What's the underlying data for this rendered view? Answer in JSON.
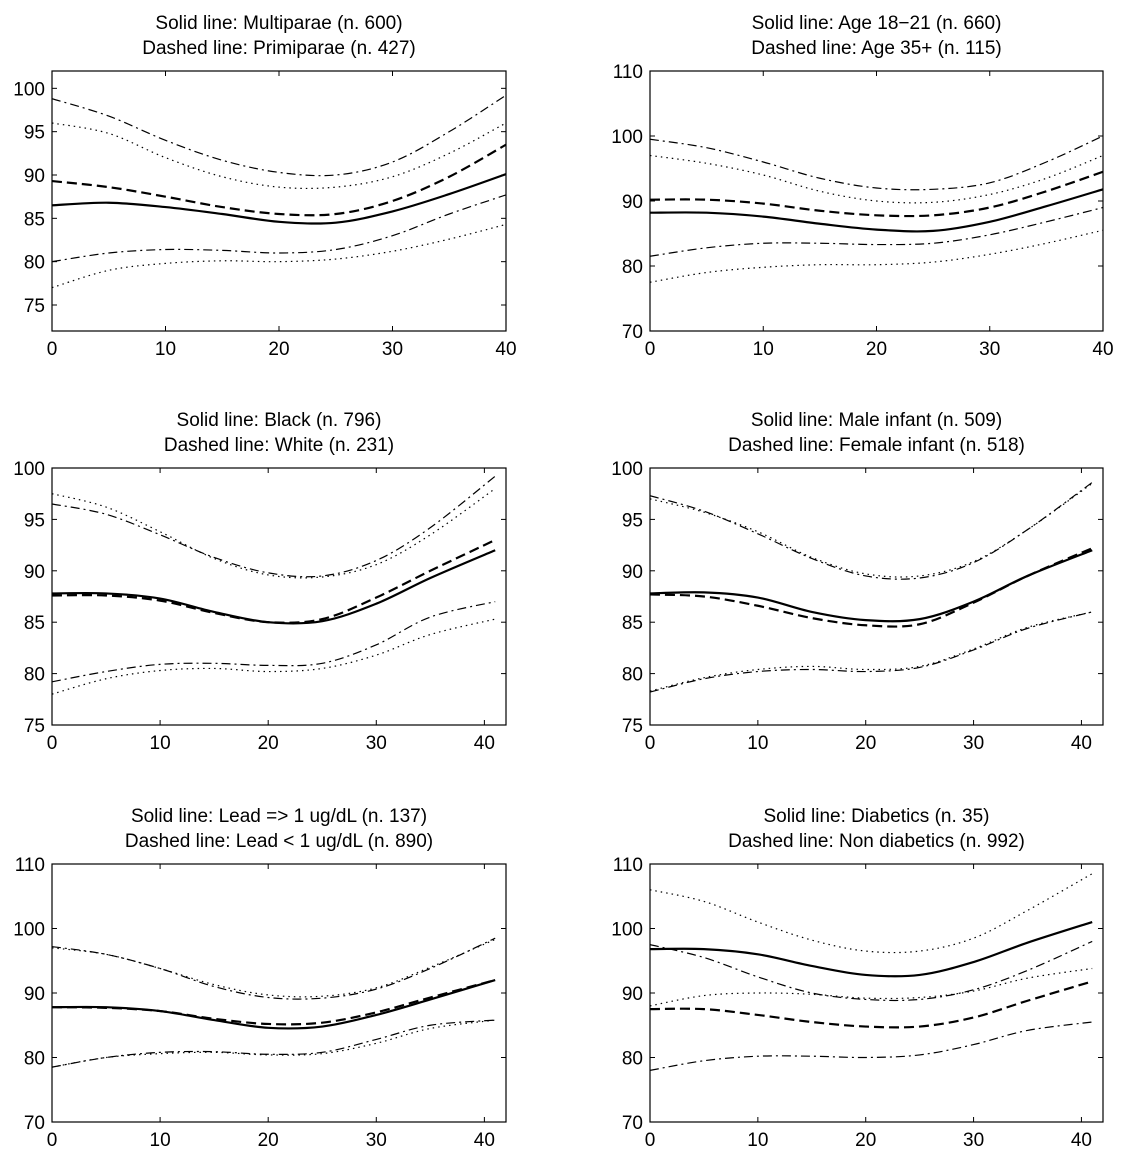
{
  "chart_data": [
    {
      "type": "line",
      "title_line1": "Solid line: Multiparae (n. 600)",
      "title_line2": "Dashed line: Primiparae (n. 427)",
      "xlim": [
        0,
        40
      ],
      "ylim": [
        72,
        102
      ],
      "xticks": [
        0,
        10,
        20,
        30,
        40
      ],
      "yticks": [
        75,
        80,
        85,
        90,
        95,
        100
      ],
      "series": [
        {
          "style": "solid",
          "x": [
            0,
            5,
            10,
            15,
            20,
            25,
            30,
            35,
            40
          ],
          "y": [
            86.5,
            86.8,
            86.3,
            85.5,
            84.6,
            84.5,
            85.8,
            87.8,
            90.1
          ]
        },
        {
          "style": "dashed",
          "x": [
            0,
            5,
            10,
            15,
            20,
            25,
            30,
            35,
            40
          ],
          "y": [
            89.3,
            88.6,
            87.5,
            86.3,
            85.5,
            85.5,
            87.0,
            89.8,
            93.5
          ]
        },
        {
          "style": "dashdot",
          "x": [
            0,
            5,
            10,
            15,
            20,
            25,
            30,
            35,
            40
          ],
          "y": [
            98.8,
            96.8,
            94.0,
            91.7,
            90.3,
            90.0,
            91.5,
            95.0,
            99.2
          ]
        },
        {
          "style": "dotted",
          "x": [
            0,
            5,
            10,
            15,
            20,
            25,
            30,
            35,
            40
          ],
          "y": [
            96.0,
            94.8,
            92.0,
            89.8,
            88.6,
            88.6,
            89.8,
            92.5,
            96.0
          ]
        },
        {
          "style": "dashdot",
          "x": [
            0,
            5,
            10,
            15,
            20,
            25,
            30,
            35,
            40
          ],
          "y": [
            80.0,
            81.0,
            81.4,
            81.3,
            81.0,
            81.4,
            83.0,
            85.5,
            87.7
          ]
        },
        {
          "style": "dotted",
          "x": [
            0,
            5,
            10,
            15,
            20,
            25,
            30,
            35,
            40
          ],
          "y": [
            77.0,
            79.0,
            79.8,
            80.1,
            80.0,
            80.3,
            81.2,
            82.6,
            84.3
          ]
        }
      ]
    },
    {
      "type": "line",
      "title_line1": "Solid line: Age 18−21 (n. 660)",
      "title_line2": "Dashed line: Age 35+ (n. 115)",
      "xlim": [
        0,
        40
      ],
      "ylim": [
        70,
        110
      ],
      "xticks": [
        0,
        10,
        20,
        30,
        40
      ],
      "yticks": [
        70,
        80,
        90,
        100,
        110
      ],
      "series": [
        {
          "style": "solid",
          "x": [
            0,
            5,
            10,
            15,
            20,
            25,
            30,
            35,
            40
          ],
          "y": [
            88.2,
            88.2,
            87.6,
            86.5,
            85.6,
            85.4,
            86.8,
            89.2,
            91.8
          ]
        },
        {
          "style": "dashed",
          "x": [
            0,
            5,
            10,
            15,
            20,
            25,
            30,
            35,
            40
          ],
          "y": [
            90.2,
            90.2,
            89.6,
            88.5,
            87.8,
            87.8,
            89.0,
            91.5,
            94.5
          ]
        },
        {
          "style": "dashdot",
          "x": [
            0,
            5,
            10,
            15,
            20,
            25,
            30,
            35,
            40
          ],
          "y": [
            99.5,
            98.2,
            96.0,
            93.5,
            92.0,
            91.8,
            92.8,
            96.0,
            100.0
          ]
        },
        {
          "style": "dotted",
          "x": [
            0,
            5,
            10,
            15,
            20,
            25,
            30,
            35,
            40
          ],
          "y": [
            97.0,
            95.8,
            94.0,
            91.5,
            90.0,
            89.8,
            91.0,
            93.5,
            97.0
          ]
        },
        {
          "style": "dashdot",
          "x": [
            0,
            5,
            10,
            15,
            20,
            25,
            30,
            35,
            40
          ],
          "y": [
            81.5,
            82.8,
            83.5,
            83.5,
            83.3,
            83.5,
            84.8,
            86.8,
            89.0
          ]
        },
        {
          "style": "dotted",
          "x": [
            0,
            5,
            10,
            15,
            20,
            25,
            30,
            35,
            40
          ],
          "y": [
            77.5,
            79.0,
            79.8,
            80.2,
            80.2,
            80.6,
            81.8,
            83.5,
            85.5
          ]
        }
      ]
    },
    {
      "type": "line",
      "title_line1": "Solid line: Black (n. 796)",
      "title_line2": "Dashed line: White (n. 231)",
      "xlim": [
        0,
        42
      ],
      "ylim": [
        75,
        100
      ],
      "xticks": [
        0,
        10,
        20,
        30,
        40
      ],
      "yticks": [
        75,
        80,
        85,
        90,
        95,
        100
      ],
      "series": [
        {
          "style": "solid",
          "x": [
            0,
            5,
            10,
            15,
            20,
            25,
            30,
            35,
            41
          ],
          "y": [
            87.8,
            87.8,
            87.3,
            86.0,
            85.0,
            85.1,
            86.8,
            89.3,
            92.0
          ]
        },
        {
          "style": "dashed",
          "x": [
            0,
            5,
            10,
            15,
            20,
            25,
            30,
            35,
            41
          ],
          "y": [
            87.6,
            87.6,
            87.1,
            85.9,
            85.0,
            85.3,
            87.4,
            90.0,
            93.0
          ]
        },
        {
          "style": "dashdot",
          "x": [
            0,
            5,
            10,
            15,
            20,
            25,
            30,
            35,
            41
          ],
          "y": [
            96.5,
            95.5,
            93.5,
            91.3,
            89.8,
            89.5,
            91.0,
            94.2,
            99.2
          ]
        },
        {
          "style": "dotted",
          "x": [
            0,
            5,
            10,
            15,
            20,
            25,
            30,
            35,
            41
          ],
          "y": [
            97.5,
            96.2,
            93.8,
            91.2,
            89.6,
            89.4,
            90.6,
            93.5,
            98.0
          ]
        },
        {
          "style": "dashdot",
          "x": [
            0,
            5,
            10,
            15,
            20,
            25,
            30,
            35,
            41
          ],
          "y": [
            79.2,
            80.2,
            80.9,
            81.0,
            80.8,
            81.0,
            82.8,
            85.5,
            87.0
          ]
        },
        {
          "style": "dotted",
          "x": [
            0,
            5,
            10,
            15,
            20,
            25,
            30,
            35,
            41
          ],
          "y": [
            78.0,
            79.5,
            80.3,
            80.5,
            80.2,
            80.5,
            81.8,
            83.8,
            85.3
          ]
        }
      ]
    },
    {
      "type": "line",
      "title_line1": "Solid line: Male infant (n. 509)",
      "title_line2": "Dashed line: Female infant (n. 518)",
      "xlim": [
        0,
        42
      ],
      "ylim": [
        75,
        100
      ],
      "xticks": [
        0,
        10,
        20,
        30,
        40
      ],
      "yticks": [
        75,
        80,
        85,
        90,
        95,
        100
      ],
      "series": [
        {
          "style": "solid",
          "x": [
            0,
            5,
            10,
            15,
            20,
            25,
            30,
            35,
            41
          ],
          "y": [
            87.8,
            87.9,
            87.4,
            86.0,
            85.2,
            85.3,
            87.0,
            89.5,
            92.0
          ]
        },
        {
          "style": "dashed",
          "x": [
            0,
            5,
            10,
            15,
            20,
            25,
            30,
            35,
            41
          ],
          "y": [
            87.7,
            87.5,
            86.6,
            85.4,
            84.7,
            84.8,
            86.9,
            89.5,
            92.2
          ]
        },
        {
          "style": "dashdot",
          "x": [
            0,
            5,
            10,
            15,
            20,
            25,
            30,
            35,
            41
          ],
          "y": [
            97.3,
            95.8,
            93.6,
            91.2,
            89.5,
            89.3,
            90.8,
            94.0,
            98.6
          ]
        },
        {
          "style": "dotted",
          "x": [
            0,
            5,
            10,
            15,
            20,
            25,
            30,
            35,
            41
          ],
          "y": [
            97.0,
            95.7,
            93.8,
            91.3,
            89.7,
            89.5,
            90.9,
            94.0,
            98.5
          ]
        },
        {
          "style": "dashdot",
          "x": [
            0,
            5,
            10,
            15,
            20,
            25,
            30,
            35,
            41
          ],
          "y": [
            78.2,
            79.5,
            80.2,
            80.4,
            80.2,
            80.6,
            82.3,
            84.4,
            86.0
          ]
        },
        {
          "style": "dotted",
          "x": [
            0,
            5,
            10,
            15,
            20,
            25,
            30,
            35,
            41
          ],
          "y": [
            78.3,
            79.6,
            80.4,
            80.7,
            80.4,
            80.7,
            82.4,
            84.5,
            86.0
          ]
        }
      ]
    },
    {
      "type": "line",
      "title_line1": "Solid line: Lead => 1 ug/dL (n. 137)",
      "title_line2": "Dashed line: Lead < 1 ug/dL  (n. 890)",
      "xlim": [
        0,
        42
      ],
      "ylim": [
        70,
        110
      ],
      "xticks": [
        0,
        10,
        20,
        30,
        40
      ],
      "yticks": [
        70,
        80,
        90,
        100,
        110
      ],
      "series": [
        {
          "style": "solid",
          "x": [
            0,
            5,
            10,
            15,
            20,
            25,
            30,
            35,
            41
          ],
          "y": [
            87.8,
            87.8,
            87.2,
            85.8,
            84.6,
            84.8,
            86.6,
            89.0,
            92.0
          ]
        },
        {
          "style": "dashed",
          "x": [
            0,
            5,
            10,
            15,
            20,
            25,
            30,
            35,
            41
          ],
          "y": [
            87.8,
            87.7,
            87.2,
            86.0,
            85.2,
            85.4,
            87.0,
            89.3,
            92.0
          ]
        },
        {
          "style": "dashdot",
          "x": [
            0,
            5,
            10,
            15,
            20,
            25,
            30,
            35,
            41
          ],
          "y": [
            97.2,
            96.0,
            93.8,
            91.0,
            89.3,
            89.2,
            90.6,
            93.8,
            98.5
          ]
        },
        {
          "style": "dotted",
          "x": [
            0,
            5,
            10,
            15,
            20,
            25,
            30,
            35,
            41
          ],
          "y": [
            97.0,
            96.0,
            93.8,
            91.3,
            89.7,
            89.5,
            90.8,
            94.0,
            98.3
          ]
        },
        {
          "style": "dashdot",
          "x": [
            0,
            5,
            10,
            15,
            20,
            25,
            30,
            35,
            41
          ],
          "y": [
            78.5,
            80.0,
            80.8,
            80.9,
            80.5,
            80.8,
            82.8,
            85.0,
            85.8
          ]
        },
        {
          "style": "dotted",
          "x": [
            0,
            5,
            10,
            15,
            20,
            25,
            30,
            35,
            41
          ],
          "y": [
            78.5,
            80.0,
            80.6,
            80.8,
            80.4,
            80.6,
            82.2,
            84.5,
            85.8
          ]
        }
      ]
    },
    {
      "type": "line",
      "title_line1": "Solid line: Diabetics (n. 35)",
      "title_line2": "Dashed line: Non diabetics  (n. 992)",
      "xlim": [
        0,
        42
      ],
      "ylim": [
        70,
        110
      ],
      "xticks": [
        0,
        10,
        20,
        30,
        40
      ],
      "yticks": [
        70,
        80,
        90,
        100,
        110
      ],
      "series": [
        {
          "style": "solid",
          "x": [
            0,
            5,
            10,
            15,
            20,
            25,
            30,
            35,
            41
          ],
          "y": [
            96.8,
            96.8,
            96.0,
            94.2,
            92.8,
            92.8,
            94.8,
            97.8,
            101.0
          ]
        },
        {
          "style": "dashed",
          "x": [
            0,
            5,
            10,
            15,
            20,
            25,
            30,
            35,
            41
          ],
          "y": [
            87.5,
            87.5,
            86.6,
            85.5,
            84.8,
            84.8,
            86.2,
            88.8,
            91.8
          ]
        },
        {
          "style": "dotted",
          "x": [
            0,
            5,
            10,
            15,
            20,
            25,
            30,
            35,
            41
          ],
          "y": [
            106.0,
            104.2,
            101.0,
            98.2,
            96.5,
            96.5,
            98.5,
            102.8,
            108.5
          ]
        },
        {
          "style": "dashdot",
          "x": [
            0,
            5,
            10,
            15,
            20,
            25,
            30,
            35,
            41
          ],
          "y": [
            97.5,
            95.5,
            92.5,
            90.0,
            89.0,
            89.0,
            90.5,
            93.5,
            98.0
          ]
        },
        {
          "style": "dotted",
          "x": [
            0,
            5,
            10,
            15,
            20,
            25,
            30,
            35,
            41
          ],
          "y": [
            88.0,
            89.6,
            90.0,
            89.8,
            89.2,
            89.3,
            90.3,
            92.3,
            93.8
          ]
        },
        {
          "style": "dashdot",
          "x": [
            0,
            5,
            10,
            15,
            20,
            25,
            30,
            35,
            41
          ],
          "y": [
            78.0,
            79.5,
            80.2,
            80.2,
            80.0,
            80.4,
            82.0,
            84.2,
            85.5
          ]
        }
      ]
    }
  ]
}
